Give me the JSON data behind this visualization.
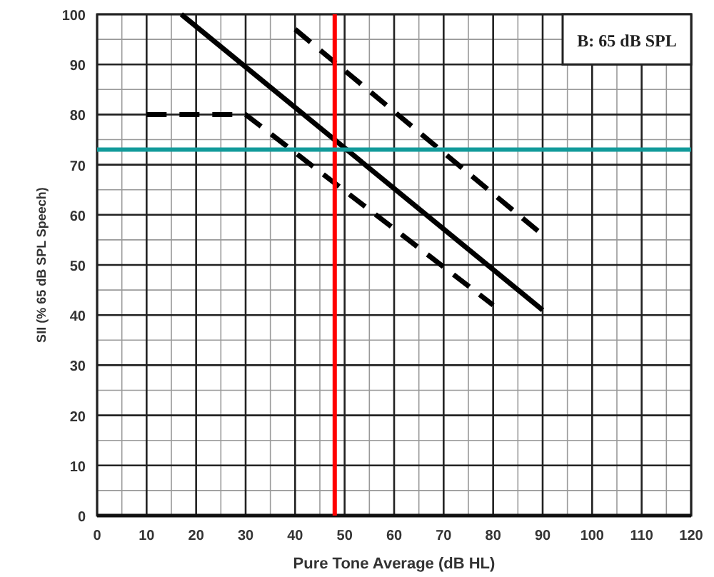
{
  "chart_data": {
    "type": "line",
    "xlabel": "Pure Tone Average (dB HL)",
    "ylabel": "SII (% 65 dB SPL Speech)",
    "xlim": [
      0,
      120
    ],
    "xticks": [
      0,
      10,
      20,
      30,
      40,
      50,
      60,
      70,
      80,
      90,
      100,
      110,
      120
    ],
    "ylim": [
      0,
      100
    ],
    "yticks": [
      0,
      10,
      20,
      30,
      40,
      50,
      60,
      70,
      80,
      90,
      100
    ],
    "grid": true,
    "marker": "none",
    "series": [
      {
        "color": "#000000",
        "x": [
          17,
          90
        ],
        "values": [
          100,
          41
        ],
        "line_style": "solid"
      },
      {
        "color": "#000000",
        "x": [
          40,
          90
        ],
        "values": [
          97,
          56
        ],
        "line_style": "dashed"
      },
      {
        "color": "#000000",
        "x": [
          10,
          30,
          80
        ],
        "values": [
          80,
          80,
          42
        ],
        "line_style": "dashed"
      }
    ],
    "ref_lines": [
      {
        "axis": "x",
        "value": 48,
        "color": "#ff0000"
      },
      {
        "axis": "y",
        "value": 73,
        "color": "#129a9a"
      }
    ],
    "annotations": [
      "B: 65 dB SPL"
    ]
  }
}
